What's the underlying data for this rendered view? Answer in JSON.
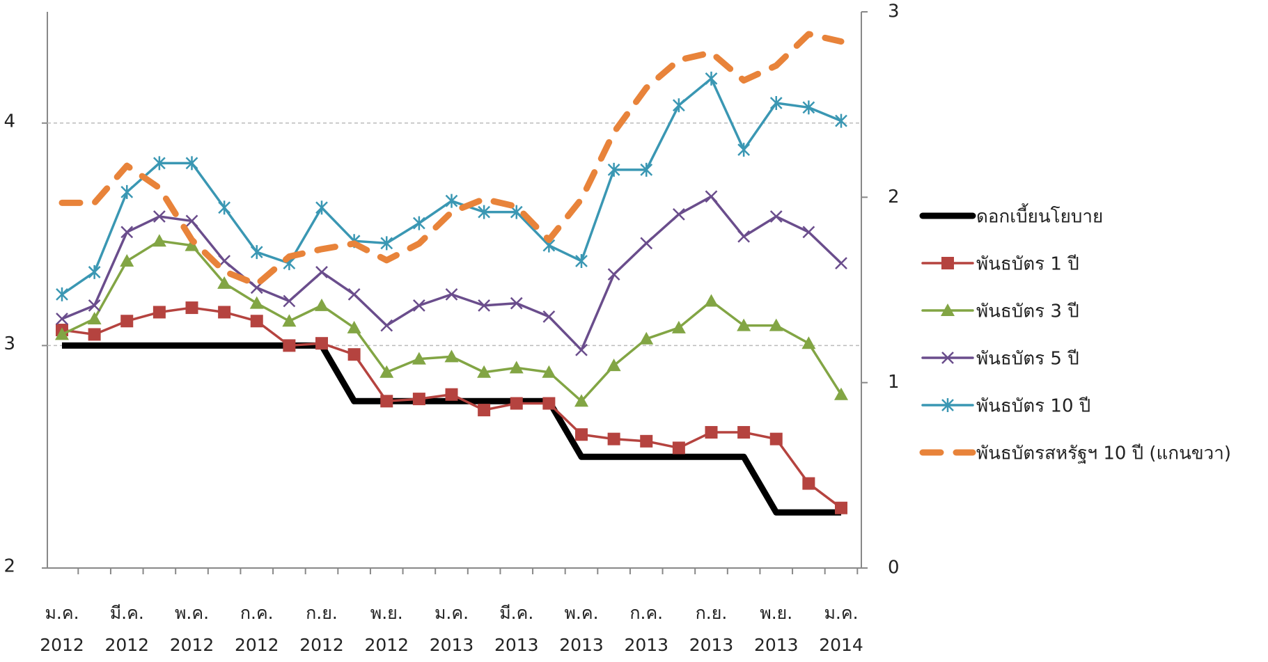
{
  "chart_data": {
    "type": "line",
    "categories": [
      "ม.ค.\n2012",
      null,
      "มี.ค.\n2012",
      null,
      "พ.ค.\n2012",
      null,
      "ก.ค.\n2012",
      null,
      "ก.ย.\n2012",
      null,
      "พ.ย.\n2012",
      null,
      "ม.ค.\n2013",
      null,
      "มี.ค.\n2013",
      null,
      "พ.ค.\n2013",
      null,
      "ก.ค.\n2013",
      null,
      "ก.ย.\n2013",
      null,
      "พ.ย.\n2013",
      null,
      "ม.ค.\n2014"
    ],
    "ylim": [
      2,
      4.5
    ],
    "yticks": [
      2,
      3,
      4
    ],
    "y2lim": [
      0,
      3
    ],
    "y2ticks": [
      0,
      1,
      2,
      3
    ],
    "grid": true,
    "series": [
      {
        "name": "ดอกเบี้ยนโยบาย",
        "color": "#000000",
        "width": 9,
        "marker": "none",
        "values": [
          3,
          3,
          3,
          3,
          3,
          3,
          3,
          3,
          3,
          2.75,
          2.75,
          2.75,
          2.75,
          2.75,
          2.75,
          2.75,
          2.5,
          2.5,
          2.5,
          2.5,
          2.5,
          2.5,
          2.25,
          2.25,
          2.25
        ]
      },
      {
        "name": "พันธบัตร 1 ปี",
        "color": "#b5433f",
        "width": 3.5,
        "marker": "square",
        "values": [
          3.07,
          3.05,
          3.11,
          3.15,
          3.17,
          3.15,
          3.11,
          3.0,
          3.01,
          2.96,
          2.75,
          2.76,
          2.78,
          2.71,
          2.74,
          2.74,
          2.6,
          2.58,
          2.57,
          2.54,
          2.61,
          2.61,
          2.58,
          2.38,
          2.27
        ]
      },
      {
        "name": "พันธบัตร 3 ปี",
        "color": "#82a544",
        "width": 3.5,
        "marker": "triangle",
        "values": [
          3.05,
          3.12,
          3.38,
          3.47,
          3.45,
          3.28,
          3.19,
          3.11,
          3.18,
          3.08,
          2.88,
          2.94,
          2.95,
          2.88,
          2.9,
          2.88,
          2.75,
          2.91,
          3.03,
          3.08,
          3.2,
          3.09,
          3.09,
          3.01,
          2.78
        ]
      },
      {
        "name": "พันธบัตร 5 ปี",
        "color": "#6a4d8c",
        "width": 3.5,
        "marker": "cross",
        "values": [
          3.12,
          3.18,
          3.51,
          3.58,
          3.56,
          3.38,
          3.26,
          3.2,
          3.33,
          3.23,
          3.09,
          3.18,
          3.23,
          3.18,
          3.19,
          3.13,
          2.98,
          3.32,
          3.46,
          3.59,
          3.67,
          3.49,
          3.58,
          3.51,
          3.37
        ]
      },
      {
        "name": "พันธบัตร 10 ปี",
        "color": "#3a97b3",
        "width": 3.5,
        "marker": "star",
        "values": [
          3.23,
          3.33,
          3.69,
          3.82,
          3.82,
          3.62,
          3.42,
          3.37,
          3.62,
          3.47,
          3.46,
          3.55,
          3.65,
          3.6,
          3.6,
          3.45,
          3.38,
          3.79,
          3.79,
          4.08,
          4.2,
          3.88,
          4.09,
          4.07,
          4.01
        ]
      },
      {
        "name": "พันธบัตรสหรัฐฯ 10 ปี (แกนขวา)",
        "color": "#e8833a",
        "width": 9,
        "marker": "none",
        "dashed": true,
        "axis": "y2",
        "values": [
          1.97,
          1.97,
          2.17,
          2.05,
          1.77,
          1.6,
          1.53,
          1.68,
          1.72,
          1.75,
          1.66,
          1.75,
          1.92,
          1.99,
          1.95,
          1.77,
          1.99,
          2.35,
          2.59,
          2.74,
          2.78,
          2.63,
          2.71,
          2.88,
          2.84
        ]
      }
    ]
  }
}
